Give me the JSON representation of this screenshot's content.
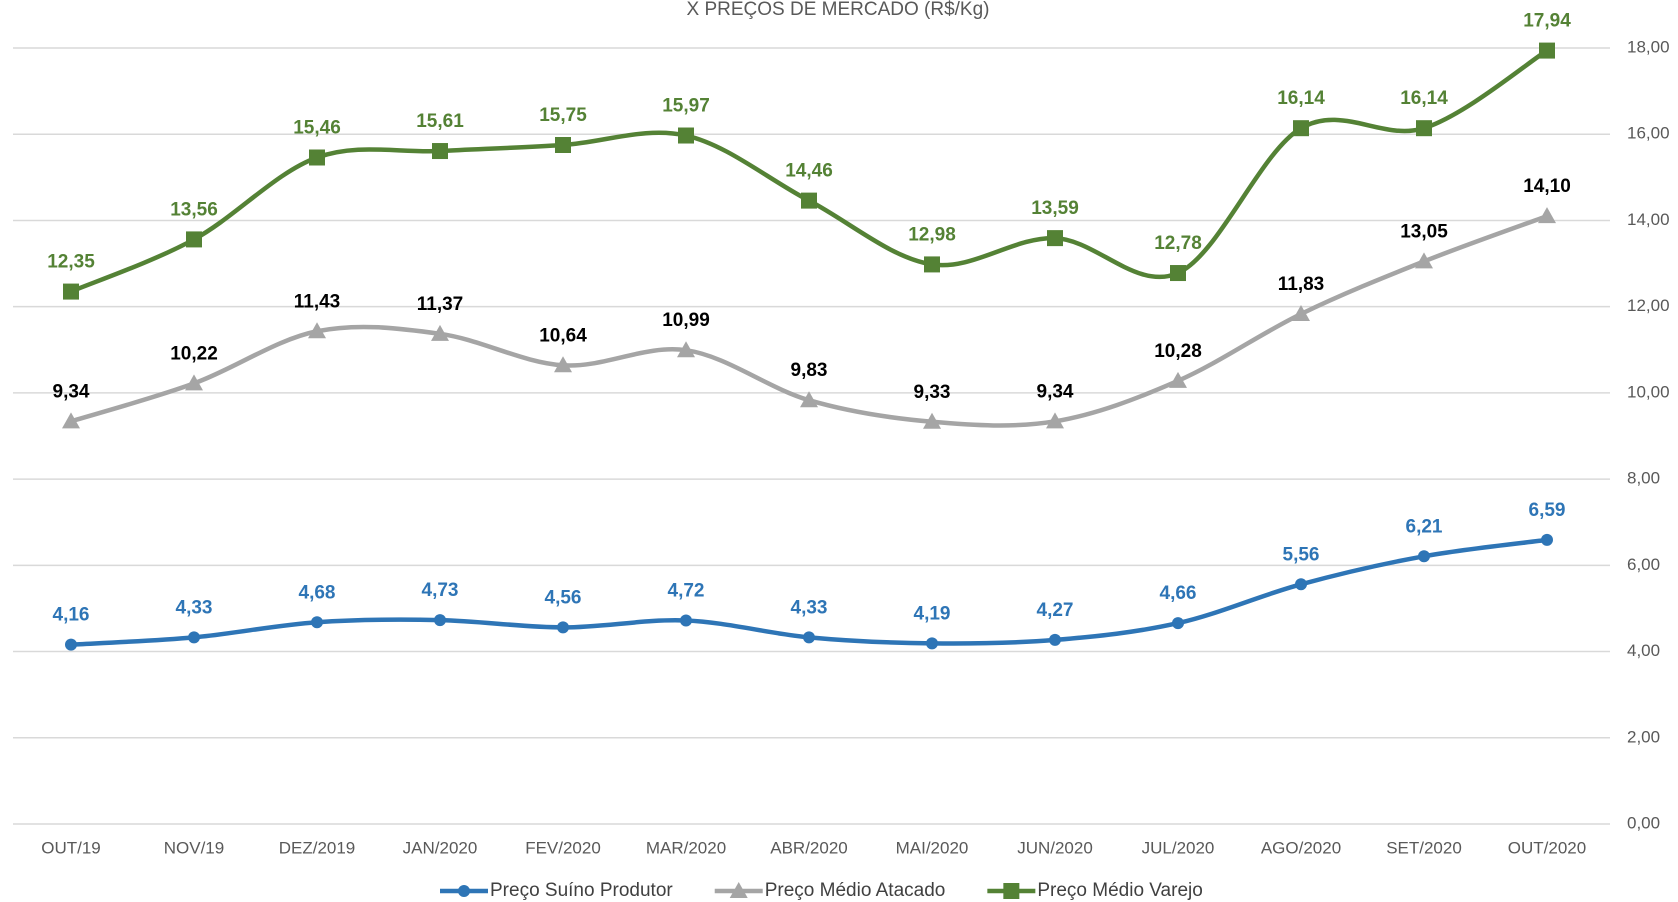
{
  "chart_data": {
    "type": "line",
    "title": "X PREÇOS DE MERCADO (R$/Kg)",
    "categories": [
      "OUT/19",
      "NOV/19",
      "DEZ/2019",
      "JAN/2020",
      "FEV/2020",
      "MAR/2020",
      "ABR/2020",
      "MAI/2020",
      "JUN/2020",
      "JUL/2020",
      "AGO/2020",
      "SET/2020",
      "OUT/2020"
    ],
    "series": [
      {
        "name": "Preço Suíno Produtor",
        "color": "#2e75b6",
        "label_color": "#2e75b6",
        "marker": "circle",
        "values": [
          4.16,
          4.33,
          4.68,
          4.73,
          4.56,
          4.72,
          4.33,
          4.19,
          4.27,
          4.66,
          5.56,
          6.21,
          6.59
        ],
        "value_labels": [
          "4,16",
          "4,33",
          "4,68",
          "4,73",
          "4,56",
          "4,72",
          "4,33",
          "4,19",
          "4,27",
          "4,66",
          "5,56",
          "6,21",
          "6,59"
        ]
      },
      {
        "name": "Preço Médio Atacado",
        "color": "#a5a5a5",
        "label_color": "#000000",
        "marker": "triangle",
        "values": [
          9.34,
          10.22,
          11.43,
          11.37,
          10.64,
          10.99,
          9.83,
          9.33,
          9.34,
          10.28,
          11.83,
          13.05,
          14.1
        ],
        "value_labels": [
          "9,34",
          "10,22",
          "11,43",
          "11,37",
          "10,64",
          "10,99",
          "9,83",
          "9,33",
          "9,34",
          "10,28",
          "11,83",
          "13,05",
          "14,10"
        ]
      },
      {
        "name": "Preço Médio Varejo",
        "color": "#548235",
        "label_color": "#548235",
        "marker": "square",
        "values": [
          12.35,
          13.56,
          15.46,
          15.61,
          15.75,
          15.97,
          14.46,
          12.98,
          13.59,
          12.78,
          16.14,
          16.14,
          17.94
        ],
        "value_labels": [
          "12,35",
          "13,56",
          "15,46",
          "15,61",
          "15,75",
          "15,97",
          "14,46",
          "12,98",
          "13,59",
          "12,78",
          "16,14",
          "16,14",
          "17,94"
        ]
      }
    ],
    "ylim": [
      0,
      18
    ],
    "yticks": [
      {
        "value": 0,
        "label": "0,00"
      },
      {
        "value": 2,
        "label": "2,00"
      },
      {
        "value": 4,
        "label": "4,00"
      },
      {
        "value": 6,
        "label": "6,00"
      },
      {
        "value": 8,
        "label": "8,00"
      },
      {
        "value": 10,
        "label": "10,00"
      },
      {
        "value": 12,
        "label": "12,00"
      },
      {
        "value": 14,
        "label": "14,00"
      },
      {
        "value": 16,
        "label": "16,00"
      },
      {
        "value": 18,
        "label": "18,00"
      }
    ],
    "grid": true,
    "smooth": true,
    "legend": "bottom"
  }
}
